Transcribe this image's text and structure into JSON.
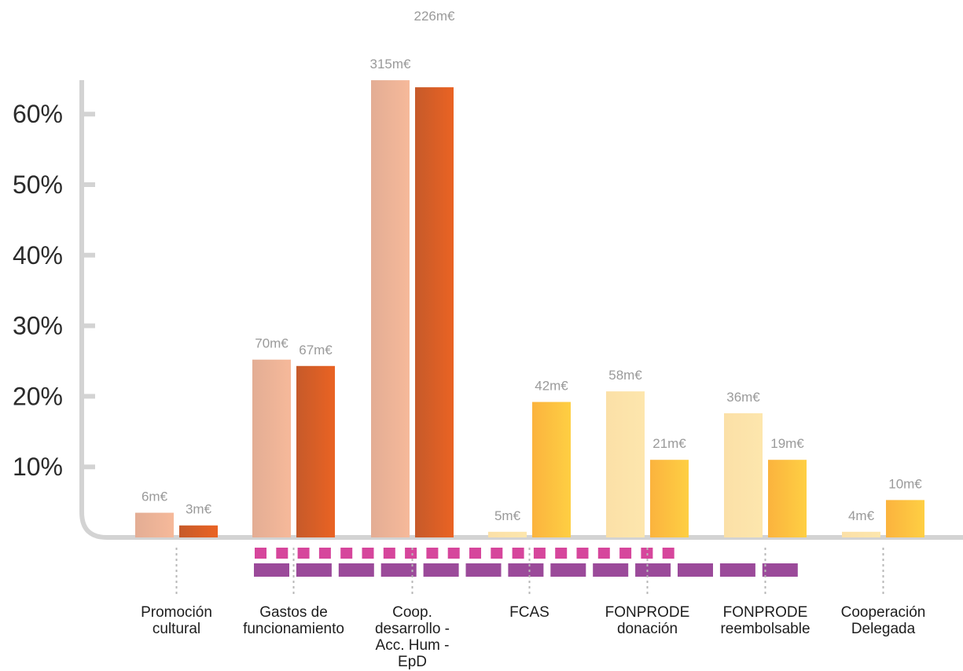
{
  "chart_data": {
    "type": "bar",
    "y_unit": "%",
    "ylim": [
      0,
      65
    ],
    "yticks": [
      10,
      20,
      30,
      40,
      50,
      60
    ],
    "ytick_labels": [
      "10%",
      "20%",
      "30%",
      "40%",
      "50%",
      "60%"
    ],
    "grid": false,
    "legend": "none",
    "categories": [
      {
        "lines": [
          "Promoción",
          "cultural"
        ]
      },
      {
        "lines": [
          "Gastos de",
          "funcionamiento"
        ]
      },
      {
        "lines": [
          "Coop.",
          "desarrollo -",
          "Acc. Hum -",
          "EpD"
        ]
      },
      {
        "lines": [
          "FCAS"
        ]
      },
      {
        "lines": [
          "FONPRODE",
          "donación"
        ]
      },
      {
        "lines": [
          "FONPRODE",
          "reembolsable"
        ]
      },
      {
        "lines": [
          "Cooperación",
          "Delegada"
        ]
      }
    ],
    "series": [
      {
        "values": [
          3.5,
          25.2,
          64.8,
          0.8,
          20.7,
          17.6,
          0.8
        ],
        "labels": [
          "6m€",
          "70m€",
          "315m€",
          "5m€",
          "58m€",
          "36m€",
          "4m€"
        ]
      },
      {
        "values": [
          1.7,
          24.3,
          63.8,
          19.2,
          11.0,
          11.0,
          5.3
        ],
        "labels": [
          "3m€",
          "67m€",
          "226m€",
          "42m€",
          "21m€",
          "19m€",
          "10m€"
        ]
      }
    ]
  },
  "colors": {
    "axis": "#d3d3d3",
    "category_connector": "#b8b8b8",
    "dash_top": "#d6469c",
    "dash_bottom": "#9b4a9a",
    "orange_a": [
      "#e3ad94",
      "#f6b99a"
    ],
    "orange_b": [
      "#c65a2a",
      "#ea6323"
    ],
    "yellow_a": [
      "#fbe0a7",
      "#fde6ad"
    ],
    "yellow_b": [
      "#fbb33e",
      "#fecf43"
    ]
  }
}
